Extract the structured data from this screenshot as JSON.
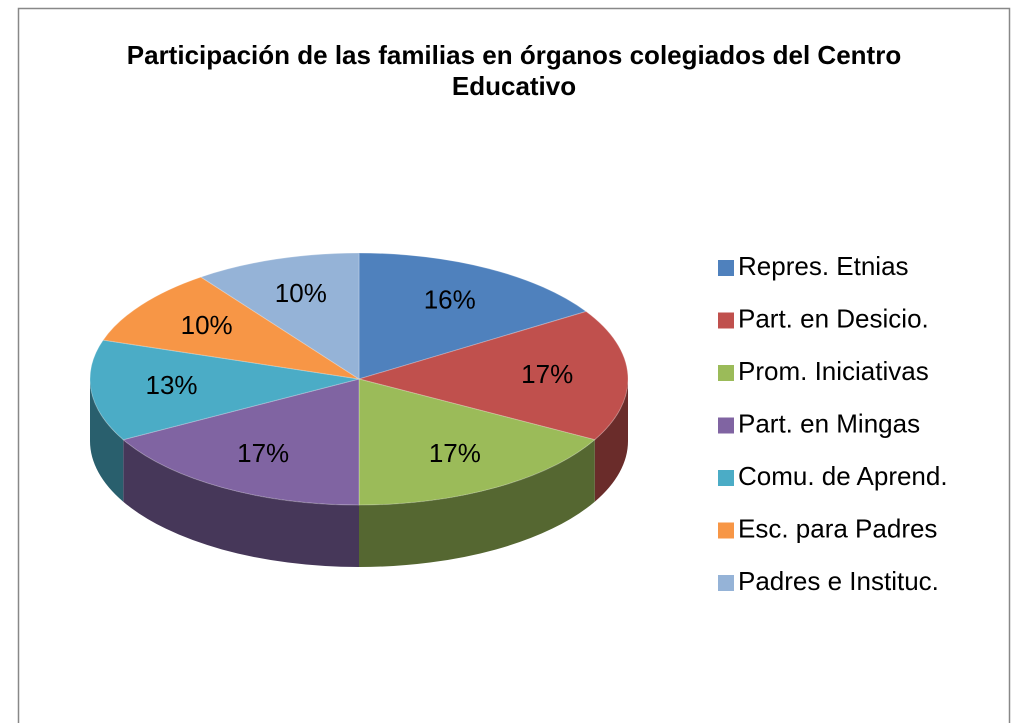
{
  "chart_data": {
    "type": "pie",
    "title": "Participación de las familias en órganos colegiados del Centro Educativo",
    "categories": [
      "Repres. Etnias",
      "Part. en Desicio.",
      "Prom. Iniciativas",
      "Part. en Mingas",
      "Comu. de Aprend.",
      "Esc. para Padres",
      "Padres e Instituc."
    ],
    "values": [
      16,
      17,
      17,
      17,
      13,
      10,
      10
    ],
    "value_labels": [
      "16%",
      "17%",
      "17%",
      "17%",
      "13%",
      "10%",
      "10%"
    ],
    "colors": [
      "#4f81bd",
      "#c0504d",
      "#9bbb59",
      "#8064a2",
      "#4bacc6",
      "#f79646",
      "#95b3d7"
    ],
    "legend": "right"
  }
}
